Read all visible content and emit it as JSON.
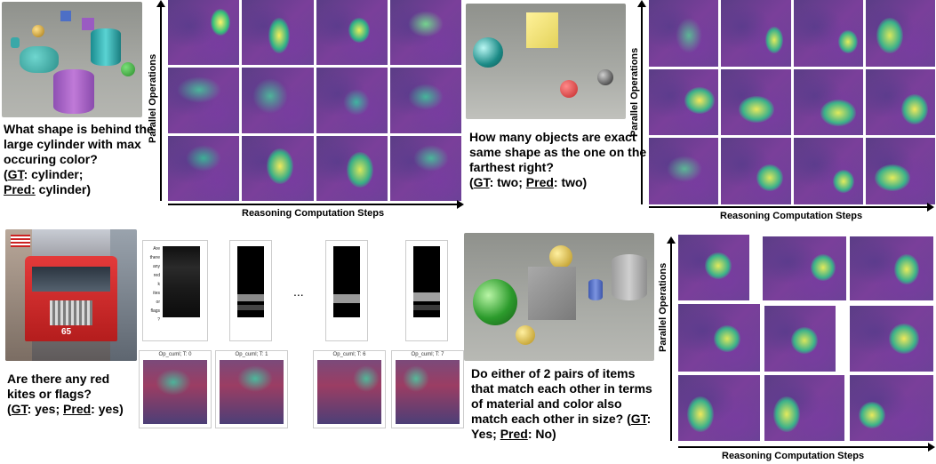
{
  "panels": {
    "a": {
      "question": "What shape is behind the large cylinder with max occuring color?",
      "gt_label": "GT",
      "gt_value": ": cylinder;",
      "pred_label": "Pred:",
      "pred_value": " cylinder)",
      "open_paren": "(",
      "y_axis": "Parallel Operations",
      "x_axis": "Reasoning Computation Steps"
    },
    "b": {
      "question": "How many objects are exact same shape as the one on the farthest right?",
      "gt_label": "GT",
      "gt_value": ": two;",
      "pred_label": "Pred",
      "pred_value": ": two)",
      "open_paren": "(",
      "y_axis": "Parallel Operations",
      "x_axis": "Reasoning Computation Steps"
    },
    "c": {
      "question": "Are there any red kites or flags?",
      "gt_label": "GT",
      "gt_value": ": yes;",
      "pred_label": "Pred",
      "pred_value": ": yes)",
      "open_paren": "(",
      "words": [
        "Are",
        "there",
        "any",
        "red",
        "k",
        "ites",
        "or",
        "flags",
        "?"
      ],
      "ellipsis": "...",
      "map_captions": [
        "Op_cuml; T: 0",
        "Op_cuml; T: 1",
        "Op_cuml; T: 6",
        "Op_cuml; T: 7"
      ],
      "fire_number": "65"
    },
    "d": {
      "question": "Do either of 2 pairs of items that match each other in terms of material and color also match each other in size?",
      "gt_label": "GT",
      "gt_value": ": Yes;",
      "pred_label": "Pred",
      "pred_value": ": No)",
      "open_paren": "(",
      "y_axis": "Parallel Operations",
      "x_axis": "Reasoning Computation Steps"
    }
  }
}
